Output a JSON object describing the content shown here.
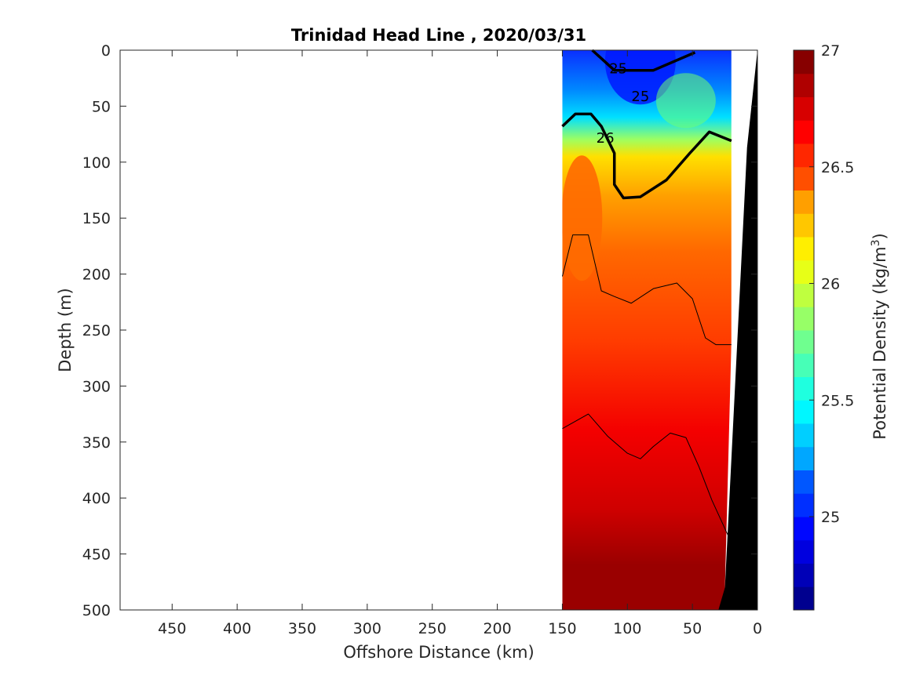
{
  "chart_data": {
    "type": "heatmap",
    "title": "Trinidad Head Line , 2020/03/31",
    "xlabel": "Offshore Distance (km)",
    "ylabel": "Depth (m)",
    "xlim": [
      490,
      0
    ],
    "ylim": [
      0,
      500
    ],
    "x_reversed": true,
    "y_reversed": true,
    "x_ticks": [
      "450",
      "400",
      "350",
      "300",
      "250",
      "200",
      "150",
      "100",
      "50",
      "0"
    ],
    "y_ticks": [
      "0",
      "50",
      "100",
      "150",
      "200",
      "250",
      "300",
      "350",
      "400",
      "450",
      "500"
    ],
    "data_extent_km": [
      150,
      20
    ],
    "colorbar": {
      "label": "Potential Density (kg/m3)",
      "range": [
        24.6,
        27
      ],
      "ticks": [
        "25",
        "25.5",
        "26",
        "26.5",
        "27"
      ],
      "levels": 24
    },
    "contour_labels": [
      {
        "text": "25",
        "distance": 107,
        "depth": 17
      },
      {
        "text": "25",
        "distance": 90,
        "depth": 42
      },
      {
        "text": "26",
        "distance": 117,
        "depth": 79
      }
    ],
    "series": [
      {
        "density": 25.0,
        "depth_by_distance": [
          [
            127,
            0
          ],
          [
            110,
            18
          ],
          [
            80,
            18
          ],
          [
            48,
            2
          ]
        ]
      },
      {
        "density": 26.0,
        "depth_by_distance": [
          [
            150,
            68
          ],
          [
            140,
            57
          ],
          [
            128,
            57
          ],
          [
            120,
            68
          ],
          [
            110,
            92
          ],
          [
            110,
            120
          ],
          [
            103,
            132
          ],
          [
            90,
            131
          ],
          [
            70,
            116
          ],
          [
            52,
            92
          ],
          [
            37,
            73
          ],
          [
            20,
            81
          ]
        ]
      },
      {
        "density": 26.5,
        "depth_by_distance": [
          [
            150,
            202
          ],
          [
            142,
            165
          ],
          [
            130,
            165
          ],
          [
            120,
            215
          ],
          [
            110,
            220
          ],
          [
            97,
            226
          ],
          [
            80,
            213
          ],
          [
            62,
            208
          ],
          [
            50,
            222
          ],
          [
            40,
            257
          ],
          [
            32,
            263
          ],
          [
            20,
            263
          ]
        ]
      },
      {
        "density": 26.8,
        "depth_by_distance": [
          [
            150,
            338
          ],
          [
            130,
            325
          ],
          [
            115,
            345
          ],
          [
            100,
            360
          ],
          [
            90,
            365
          ],
          [
            80,
            354
          ],
          [
            67,
            342
          ],
          [
            55,
            346
          ],
          [
            45,
            372
          ],
          [
            35,
            402
          ],
          [
            20,
            440
          ]
        ]
      }
    ]
  },
  "colors": {
    "colormap": [
      "#00008f",
      "#0000b7",
      "#0000df",
      "#0007ff",
      "#002fff",
      "#0057ff",
      "#007fff",
      "#00a7ff",
      "#00cfff",
      "#00f7ff",
      "#1fffdf",
      "#47ffb7",
      "#6fff8f",
      "#97ff67",
      "#bfff3f",
      "#e7ff17",
      "#ffef00",
      "#ffc700",
      "#ff9f00",
      "#ff7700",
      "#ff4f00",
      "#ff2700",
      "#ff0000",
      "#d70000",
      "#af0000",
      "#870000"
    ],
    "bathymetry": "#000000"
  }
}
